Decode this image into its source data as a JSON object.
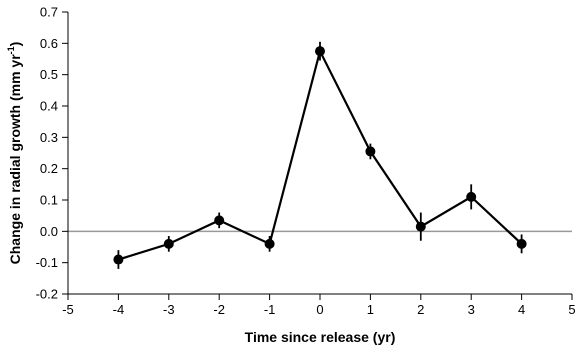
{
  "chart_data": {
    "type": "line",
    "xlabel": "Time since release (yr)",
    "ylabel_prefix": "Change in radial growth (mm yr",
    "ylabel_sup": "-1",
    "ylabel_suffix": ")",
    "xlim": [
      -5,
      5
    ],
    "ylim": [
      -0.2,
      0.7
    ],
    "xticks": [
      -5,
      -4,
      -3,
      -2,
      -1,
      0,
      1,
      2,
      3,
      4,
      5
    ],
    "xtick_labels": [
      "-5",
      "-4",
      "-3",
      "-2",
      "-1",
      "0",
      "1",
      "2",
      "3",
      "4",
      "5"
    ],
    "yticks": [
      -0.2,
      -0.1,
      0.0,
      0.1,
      0.2,
      0.3,
      0.4,
      0.5,
      0.6,
      0.7
    ],
    "ytick_labels": [
      "-0.2",
      "-0.1",
      "0.0",
      "0.1",
      "0.2",
      "0.3",
      "0.4",
      "0.5",
      "0.6",
      "0.7"
    ],
    "reference_line_y": 0.0,
    "grid": false,
    "series": [
      {
        "x": [
          -4,
          -3,
          -2,
          -1,
          0,
          1,
          2,
          3,
          4
        ],
        "y": [
          -0.09,
          -0.04,
          0.035,
          -0.04,
          0.575,
          0.255,
          0.015,
          0.11,
          -0.04
        ],
        "error": [
          0.03,
          0.025,
          0.025,
          0.025,
          0.03,
          0.025,
          0.045,
          0.04,
          0.03
        ]
      }
    ],
    "colors": {
      "line": "#000000",
      "marker": "#000000",
      "reference": "#9a9a9a",
      "axis": "#000000"
    }
  }
}
